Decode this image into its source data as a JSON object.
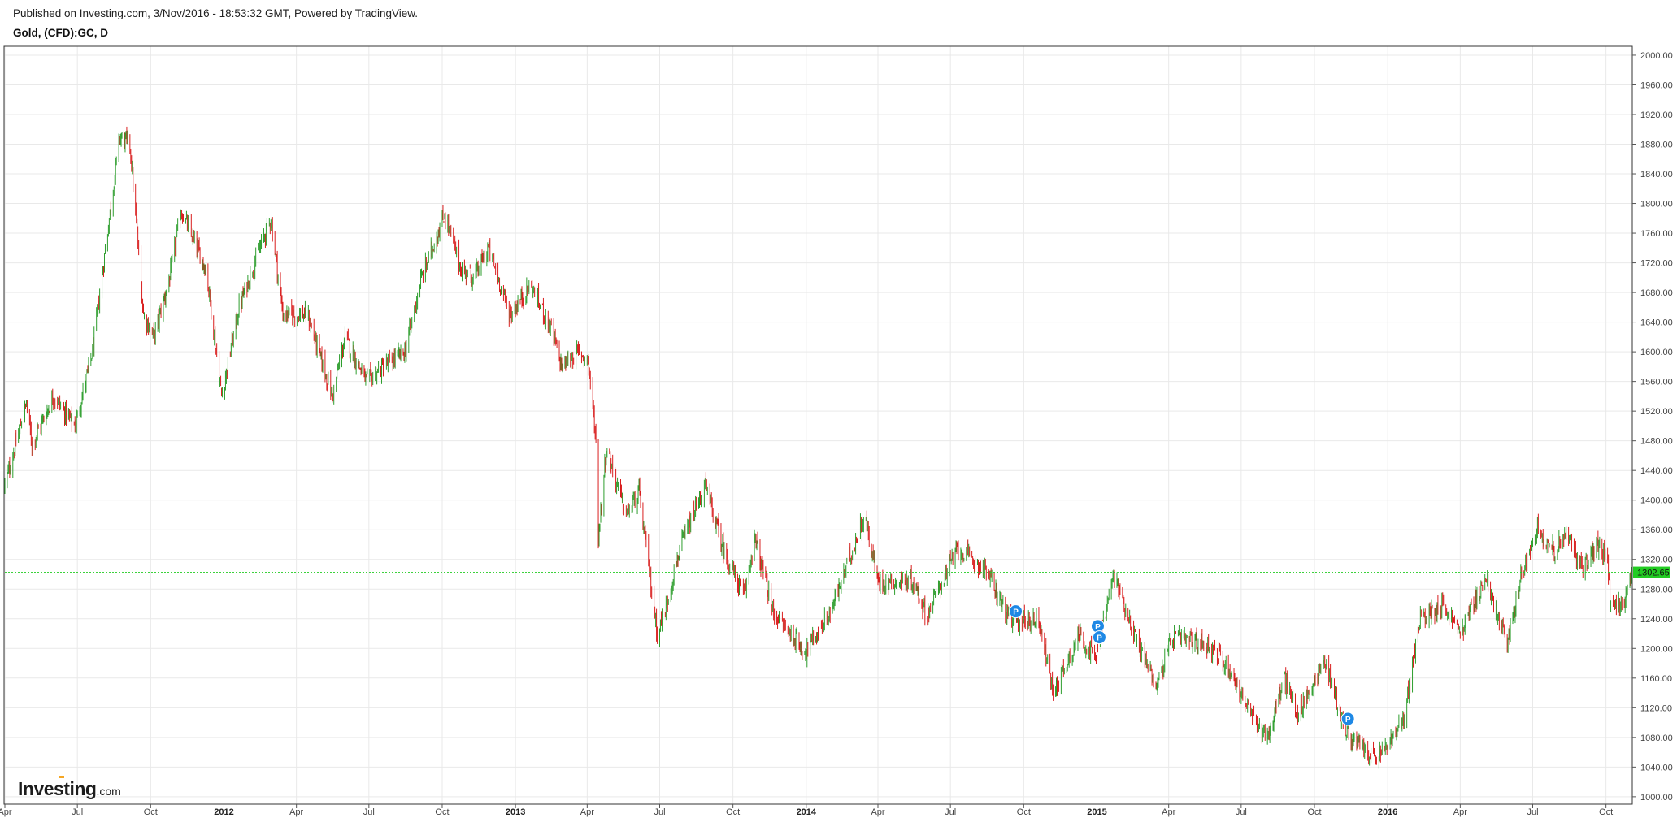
{
  "header": {
    "published": "Published on Investing.com, 3/Nov/2016 - 18:53:32 GMT, Powered by TradingView.",
    "symbol": "Gold, (CFD):GC, D"
  },
  "logo": {
    "name": "Investing",
    "suffix": ".com"
  },
  "colors": {
    "up": "#2e9e2e",
    "down": "#d91e1e",
    "last_price_bg": "#22cc22",
    "marker": "#1e88e5",
    "grid": "#e9e9e9",
    "frame": "#333333"
  },
  "chart_data": {
    "type": "candlestick",
    "title": "Gold, (CFD):GC, D",
    "x_range": [
      "2011-04-01",
      "2016-11-03"
    ],
    "ylim": [
      990,
      2012
    ],
    "grid": true,
    "x_ticks": [
      {
        "label": "Apr",
        "date": "2011-04-01",
        "year": false
      },
      {
        "label": "Jul",
        "date": "2011-07-01",
        "year": false
      },
      {
        "label": "Oct",
        "date": "2011-10-01",
        "year": false
      },
      {
        "label": "2012",
        "date": "2012-01-01",
        "year": true
      },
      {
        "label": "Apr",
        "date": "2012-04-01",
        "year": false
      },
      {
        "label": "Jul",
        "date": "2012-07-01",
        "year": false
      },
      {
        "label": "Oct",
        "date": "2012-10-01",
        "year": false
      },
      {
        "label": "2013",
        "date": "2013-01-01",
        "year": true
      },
      {
        "label": "Apr",
        "date": "2013-04-01",
        "year": false
      },
      {
        "label": "Jul",
        "date": "2013-07-01",
        "year": false
      },
      {
        "label": "Oct",
        "date": "2013-10-01",
        "year": false
      },
      {
        "label": "2014",
        "date": "2014-01-01",
        "year": true
      },
      {
        "label": "Apr",
        "date": "2014-04-01",
        "year": false
      },
      {
        "label": "Jul",
        "date": "2014-07-01",
        "year": false
      },
      {
        "label": "Oct",
        "date": "2014-10-01",
        "year": false
      },
      {
        "label": "2015",
        "date": "2015-01-01",
        "year": true
      },
      {
        "label": "Apr",
        "date": "2015-04-01",
        "year": false
      },
      {
        "label": "Jul",
        "date": "2015-07-01",
        "year": false
      },
      {
        "label": "Oct",
        "date": "2015-10-01",
        "year": false
      },
      {
        "label": "2016",
        "date": "2016-01-01",
        "year": true
      },
      {
        "label": "Apr",
        "date": "2016-04-01",
        "year": false
      },
      {
        "label": "Jul",
        "date": "2016-07-01",
        "year": false
      },
      {
        "label": "Oct",
        "date": "2016-10-01",
        "year": false
      }
    ],
    "y_ticks": [
      "1000.00",
      "1040.00",
      "1080.00",
      "1120.00",
      "1160.00",
      "1200.00",
      "1240.00",
      "1280.00",
      "1320.00",
      "1360.00",
      "1400.00",
      "1440.00",
      "1480.00",
      "1520.00",
      "1560.00",
      "1600.00",
      "1640.00",
      "1680.00",
      "1720.00",
      "1760.00",
      "1800.00",
      "1840.00",
      "1880.00",
      "1920.00",
      "1960.00",
      "2000.00"
    ],
    "last_price": 1302.65,
    "last_price_label": "1302.65",
    "close_path": [
      {
        "date": "2011-04-01",
        "price": 1420
      },
      {
        "date": "2011-04-28",
        "price": 1530
      },
      {
        "date": "2011-05-05",
        "price": 1475
      },
      {
        "date": "2011-06-01",
        "price": 1540
      },
      {
        "date": "2011-06-28",
        "price": 1500
      },
      {
        "date": "2011-07-20",
        "price": 1600
      },
      {
        "date": "2011-08-10",
        "price": 1780
      },
      {
        "date": "2011-08-23",
        "price": 1890
      },
      {
        "date": "2011-09-05",
        "price": 1880
      },
      {
        "date": "2011-09-22",
        "price": 1650
      },
      {
        "date": "2011-10-05",
        "price": 1620
      },
      {
        "date": "2011-10-25",
        "price": 1700
      },
      {
        "date": "2011-11-08",
        "price": 1790
      },
      {
        "date": "2011-11-28",
        "price": 1740
      },
      {
        "date": "2011-12-10",
        "price": 1710
      },
      {
        "date": "2011-12-29",
        "price": 1540
      },
      {
        "date": "2012-01-20",
        "price": 1660
      },
      {
        "date": "2012-02-15",
        "price": 1740
      },
      {
        "date": "2012-02-29",
        "price": 1780
      },
      {
        "date": "2012-03-15",
        "price": 1650
      },
      {
        "date": "2012-04-15",
        "price": 1650
      },
      {
        "date": "2012-05-16",
        "price": 1540
      },
      {
        "date": "2012-06-01",
        "price": 1620
      },
      {
        "date": "2012-06-28",
        "price": 1560
      },
      {
        "date": "2012-07-20",
        "price": 1580
      },
      {
        "date": "2012-08-15",
        "price": 1600
      },
      {
        "date": "2012-09-05",
        "price": 1700
      },
      {
        "date": "2012-10-04",
        "price": 1785
      },
      {
        "date": "2012-10-25",
        "price": 1710
      },
      {
        "date": "2012-11-10",
        "price": 1700
      },
      {
        "date": "2012-11-28",
        "price": 1740
      },
      {
        "date": "2012-12-25",
        "price": 1650
      },
      {
        "date": "2013-01-20",
        "price": 1690
      },
      {
        "date": "2013-02-15",
        "price": 1630
      },
      {
        "date": "2013-02-28",
        "price": 1580
      },
      {
        "date": "2013-03-20",
        "price": 1600
      },
      {
        "date": "2013-04-02",
        "price": 1590
      },
      {
        "date": "2013-04-12",
        "price": 1480
      },
      {
        "date": "2013-04-15",
        "price": 1350
      },
      {
        "date": "2013-04-25",
        "price": 1470
      },
      {
        "date": "2013-05-20",
        "price": 1380
      },
      {
        "date": "2013-06-05",
        "price": 1410
      },
      {
        "date": "2013-06-28",
        "price": 1220
      },
      {
        "date": "2013-07-10",
        "price": 1260
      },
      {
        "date": "2013-07-25",
        "price": 1330
      },
      {
        "date": "2013-08-27",
        "price": 1420
      },
      {
        "date": "2013-09-20",
        "price": 1330
      },
      {
        "date": "2013-10-15",
        "price": 1270
      },
      {
        "date": "2013-10-28",
        "price": 1350
      },
      {
        "date": "2013-11-20",
        "price": 1250
      },
      {
        "date": "2013-12-31",
        "price": 1195
      },
      {
        "date": "2014-02-01",
        "price": 1250
      },
      {
        "date": "2014-03-15",
        "price": 1380
      },
      {
        "date": "2014-04-01",
        "price": 1290
      },
      {
        "date": "2014-05-15",
        "price": 1290
      },
      {
        "date": "2014-06-01",
        "price": 1245
      },
      {
        "date": "2014-07-10",
        "price": 1335
      },
      {
        "date": "2014-08-15",
        "price": 1305
      },
      {
        "date": "2014-09-15",
        "price": 1235
      },
      {
        "date": "2014-10-20",
        "price": 1240
      },
      {
        "date": "2014-11-07",
        "price": 1140
      },
      {
        "date": "2014-12-10",
        "price": 1220
      },
      {
        "date": "2014-12-30",
        "price": 1185
      },
      {
        "date": "2015-01-22",
        "price": 1300
      },
      {
        "date": "2015-02-20",
        "price": 1210
      },
      {
        "date": "2015-03-17",
        "price": 1150
      },
      {
        "date": "2015-04-06",
        "price": 1215
      },
      {
        "date": "2015-05-20",
        "price": 1205
      },
      {
        "date": "2015-06-15",
        "price": 1175
      },
      {
        "date": "2015-07-20",
        "price": 1095
      },
      {
        "date": "2015-08-05",
        "price": 1085
      },
      {
        "date": "2015-08-24",
        "price": 1160
      },
      {
        "date": "2015-09-10",
        "price": 1110
      },
      {
        "date": "2015-10-14",
        "price": 1185
      },
      {
        "date": "2015-11-10",
        "price": 1085
      },
      {
        "date": "2015-12-17",
        "price": 1050
      },
      {
        "date": "2016-01-05",
        "price": 1075
      },
      {
        "date": "2016-01-20",
        "price": 1100
      },
      {
        "date": "2016-02-11",
        "price": 1240
      },
      {
        "date": "2016-03-10",
        "price": 1260
      },
      {
        "date": "2016-04-01",
        "price": 1220
      },
      {
        "date": "2016-05-02",
        "price": 1295
      },
      {
        "date": "2016-05-30",
        "price": 1205
      },
      {
        "date": "2016-06-15",
        "price": 1290
      },
      {
        "date": "2016-07-06",
        "price": 1365
      },
      {
        "date": "2016-07-28",
        "price": 1330
      },
      {
        "date": "2016-08-10",
        "price": 1355
      },
      {
        "date": "2016-09-01",
        "price": 1310
      },
      {
        "date": "2016-09-22",
        "price": 1340
      },
      {
        "date": "2016-10-03",
        "price": 1315
      },
      {
        "date": "2016-10-07",
        "price": 1255
      },
      {
        "date": "2016-10-25",
        "price": 1265
      },
      {
        "date": "2016-11-03",
        "price": 1302.65
      }
    ],
    "markers": [
      {
        "label": "P",
        "date": "2014-09-21",
        "price": 1250
      },
      {
        "label": "P",
        "date": "2015-01-02",
        "price": 1230
      },
      {
        "label": "P",
        "date": "2015-01-04",
        "price": 1215
      },
      {
        "label": "P",
        "date": "2015-11-12",
        "price": 1105
      }
    ]
  }
}
